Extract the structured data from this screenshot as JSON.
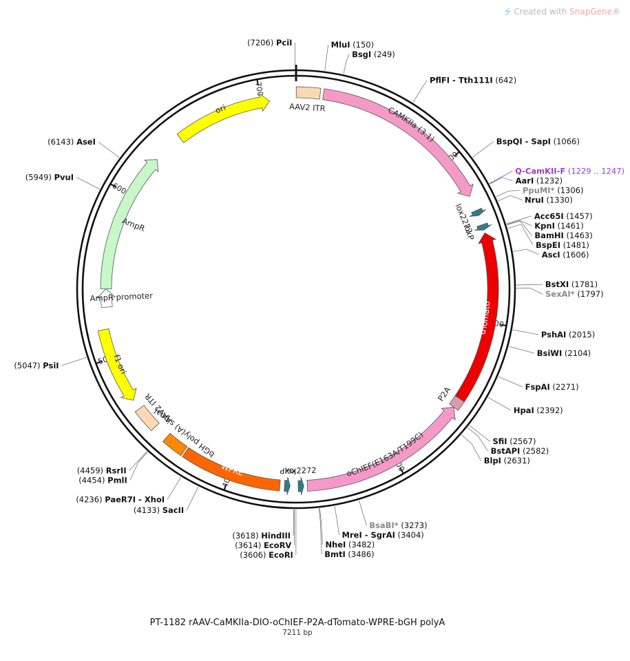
{
  "watermark": {
    "prefix": "Created with ",
    "brand": "SnapGene",
    "suffix": "®"
  },
  "plasmid": {
    "name": "PT-1182  rAAV-CaMKIIa-DIO-oChIEF-P2A-dTomato-WPRE-bGH polyA",
    "size_bp": 7211,
    "size_label": "7211 bp"
  },
  "ticks": [
    1000,
    2000,
    3000,
    4000,
    5000,
    6000,
    7000
  ],
  "features": [
    {
      "name": "AAV2 ITR",
      "start": 1,
      "end": 141,
      "shape": "box",
      "color": "#fbd9b4",
      "label_mode": "outside"
    },
    {
      "name": "CAMKIIa (3.1)",
      "start": 160,
      "end": 1240,
      "shape": "arrow",
      "dir": 1,
      "color": "#f59ac8",
      "label_mode": "inside"
    },
    {
      "name": "lox2272",
      "start": 1330,
      "end": 1363,
      "shape": "arrow",
      "dir": 1,
      "color": "#2e7d8c",
      "label_mode": "outside"
    },
    {
      "name": "loxP",
      "start": 1420,
      "end": 1453,
      "shape": "arrow",
      "dir": 1,
      "color": "#2e7d8c",
      "label_mode": "outside"
    },
    {
      "name": "dTomato",
      "start": 1470,
      "end": 2480,
      "shape": "arrow",
      "dir": -1,
      "color": "#ee0000",
      "label_mode": "inside",
      "label_color": "#ffffff"
    },
    {
      "name": "P2A",
      "start": 2480,
      "end": 2540,
      "shape": "box",
      "color": "#d79cb4",
      "label_mode": "outside"
    },
    {
      "name": "oChIEF(E163A/T199C)",
      "start": 2540,
      "end": 3540,
      "shape": "arrow",
      "dir": -1,
      "color": "#f59ac8",
      "label_mode": "inside"
    },
    {
      "name": "lox2272",
      "start": 3560,
      "end": 3593,
      "shape": "arrow",
      "dir": -1,
      "color": "#2e7d8c",
      "label_mode": "outside"
    },
    {
      "name": "loxP",
      "start": 3640,
      "end": 3673,
      "shape": "arrow",
      "dir": -1,
      "color": "#2e7d8c",
      "label_mode": "outside"
    },
    {
      "name": "WPRE",
      "start": 3700,
      "end": 4290,
      "shape": "box",
      "color": "#ff6600",
      "label_mode": "inside",
      "label_color": "#ffffff"
    },
    {
      "name": "bGH poly(A) signal",
      "start": 4300,
      "end": 4430,
      "shape": "box",
      "color": "#ff8800",
      "label_mode": "outside"
    },
    {
      "name": "AAV2 ITR",
      "start": 4520,
      "end": 4660,
      "shape": "box",
      "color": "#fbd9b4",
      "label_mode": "outside"
    },
    {
      "name": "f1 ori",
      "start": 4720,
      "end": 5170,
      "shape": "arrow",
      "dir": -1,
      "color": "#ffff00",
      "label_mode": "inside"
    },
    {
      "name": "AmpR promoter",
      "start": 5300,
      "end": 5410,
      "shape": "arrow",
      "dir": 1,
      "color": "#ffffff",
      "label_mode": "outside"
    },
    {
      "name": "AmpR",
      "start": 5410,
      "end": 6270,
      "shape": "arrow",
      "dir": 1,
      "color": "#c8f7c8",
      "label_mode": "outside"
    },
    {
      "name": "ori",
      "start": 6460,
      "end": 7050,
      "shape": "arrow",
      "dir": 1,
      "color": "#ffff00",
      "label_mode": "inside"
    }
  ],
  "sites": [
    {
      "name": "PciI",
      "pos": "7206",
      "style": "normal",
      "side": "left"
    },
    {
      "name": "MluI",
      "pos": "150",
      "style": "normal",
      "side": "right"
    },
    {
      "name": "BsgI",
      "pos": "249",
      "style": "normal",
      "side": "right"
    },
    {
      "name": "PflFI - Tth111I",
      "pos": "642",
      "style": "normal",
      "side": "right"
    },
    {
      "name": "BspQI - SapI",
      "pos": "1066",
      "style": "normal",
      "side": "right"
    },
    {
      "name": "Q-CamKII-F",
      "pos": "1229 .. 1247",
      "style": "purple",
      "side": "right"
    },
    {
      "name": "AarI",
      "pos": "1232",
      "style": "normal",
      "side": "right"
    },
    {
      "name": "PpuMI*",
      "pos": "1306",
      "style": "gray",
      "side": "right"
    },
    {
      "name": "NruI",
      "pos": "1330",
      "style": "normal",
      "side": "right"
    },
    {
      "name": "Acc65I",
      "pos": "1457",
      "style": "normal",
      "side": "right"
    },
    {
      "name": "KpnI",
      "pos": "1461",
      "style": "normal",
      "side": "right"
    },
    {
      "name": "BamHI",
      "pos": "1463",
      "style": "normal",
      "side": "right"
    },
    {
      "name": "BspEI",
      "pos": "1481",
      "style": "normal",
      "side": "right"
    },
    {
      "name": "AscI",
      "pos": "1606",
      "style": "normal",
      "side": "right"
    },
    {
      "name": "BstXI",
      "pos": "1781",
      "style": "normal",
      "side": "right"
    },
    {
      "name": "SexAI*",
      "pos": "1797",
      "style": "gray",
      "side": "right"
    },
    {
      "name": "PshAI",
      "pos": "2015",
      "style": "normal",
      "side": "right"
    },
    {
      "name": "BsiWI",
      "pos": "2104",
      "style": "normal",
      "side": "right"
    },
    {
      "name": "FspAI",
      "pos": "2271",
      "style": "normal",
      "side": "right"
    },
    {
      "name": "HpaI",
      "pos": "2392",
      "style": "normal",
      "side": "right"
    },
    {
      "name": "SfiI",
      "pos": "2567",
      "style": "normal",
      "side": "right"
    },
    {
      "name": "BstAPI",
      "pos": "2582",
      "style": "normal",
      "side": "right"
    },
    {
      "name": "BlpI",
      "pos": "2631",
      "style": "normal",
      "side": "right"
    },
    {
      "name": "BsaBI*",
      "pos": "3273",
      "style": "gray",
      "side": "right"
    },
    {
      "name": "MreI - SgrAI",
      "pos": "3404",
      "style": "normal",
      "side": "right"
    },
    {
      "name": "NheI",
      "pos": "3482",
      "style": "normal",
      "side": "right"
    },
    {
      "name": "BmtI",
      "pos": "3486",
      "style": "normal",
      "side": "right"
    },
    {
      "name": "HindIII",
      "pos": "3618",
      "style": "normal",
      "side": "left"
    },
    {
      "name": "EcoRV",
      "pos": "3614",
      "style": "normal",
      "side": "left"
    },
    {
      "name": "EcoRI",
      "pos": "3606",
      "style": "normal",
      "side": "left"
    },
    {
      "name": "SacII",
      "pos": "4133",
      "style": "normal",
      "side": "left"
    },
    {
      "name": "PaeR7I - XhoI",
      "pos": "4236",
      "style": "normal",
      "side": "left"
    },
    {
      "name": "PmlI",
      "pos": "4454",
      "style": "normal",
      "side": "left"
    },
    {
      "name": "RsrII",
      "pos": "4459",
      "style": "normal",
      "side": "left"
    },
    {
      "name": "PsiI",
      "pos": "5047",
      "style": "normal",
      "side": "left"
    },
    {
      "name": "PvuI",
      "pos": "5949",
      "style": "normal",
      "side": "left"
    },
    {
      "name": "AseI",
      "pos": "6143",
      "style": "normal",
      "side": "left"
    }
  ]
}
